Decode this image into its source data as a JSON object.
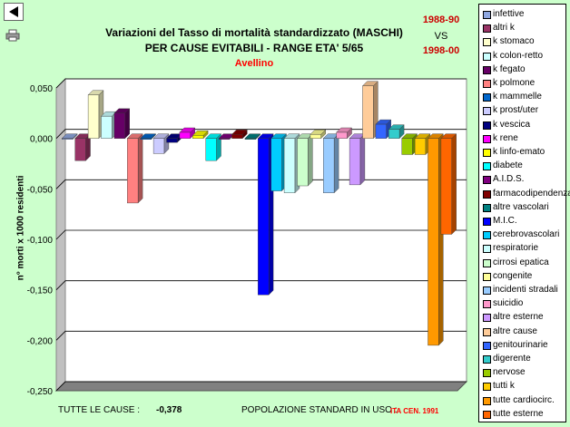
{
  "header": {
    "title_line1": "Variazioni del Tasso di mortalità standardizzato (MASCHI)",
    "title_line2": "PER CAUSE EVITABILI - RANGE ETA' 5/65",
    "area": "Avellino",
    "period1": "1988-90",
    "vs": "VS",
    "period2": "1998-00"
  },
  "footer": {
    "total_label": "TUTTE LE CAUSE :",
    "total_value": "-0,378",
    "pop_label": "POPOLAZIONE STANDARD IN USO :",
    "pop_value": "ITA CEN. 1991"
  },
  "toolbar": {
    "back_icon": "back-arrow-icon",
    "print_icon": "printer-icon"
  },
  "chart_data": {
    "type": "bar",
    "ylabel": "n° morti x 1000 residenti",
    "ylim": [
      -0.25,
      0.05
    ],
    "yticks": [
      "0,050",
      "0,000",
      "-0,050",
      "-0,100",
      "-0,150",
      "-0,200",
      "-0,250"
    ],
    "grid": true,
    "legend_position": "right",
    "series": [
      {
        "name": "infettive",
        "value": 0.0,
        "color": "#8fa7e0"
      },
      {
        "name": "altri k",
        "value": -0.022,
        "color": "#993366"
      },
      {
        "name": "k stomaco",
        "value": 0.043,
        "color": "#ffffcc"
      },
      {
        "name": "k colon-retto",
        "value": 0.022,
        "color": "#ccffff"
      },
      {
        "name": "k fegato",
        "value": 0.025,
        "color": "#660066"
      },
      {
        "name": "k polmone",
        "value": -0.064,
        "color": "#ff8080"
      },
      {
        "name": "k mammelle",
        "value": -0.001,
        "color": "#0066cc"
      },
      {
        "name": "k prost/uter",
        "value": -0.015,
        "color": "#ccccff"
      },
      {
        "name": "k vescica",
        "value": -0.004,
        "color": "#000080"
      },
      {
        "name": "k rene",
        "value": 0.006,
        "color": "#ff00ff"
      },
      {
        "name": "k linfo-emato",
        "value": 0.003,
        "color": "#ffff00"
      },
      {
        "name": "diabete",
        "value": -0.022,
        "color": "#00ffff"
      },
      {
        "name": "A.I.D.S.",
        "value": 0.0,
        "color": "#800080"
      },
      {
        "name": "farmacodipendenza",
        "value": 0.004,
        "color": "#800000"
      },
      {
        "name": "altre vascolari",
        "value": 0.0,
        "color": "#008080"
      },
      {
        "name": "M.I.C.",
        "value": -0.155,
        "color": "#0000ff"
      },
      {
        "name": "cerebrovascolari",
        "value": -0.052,
        "color": "#00ccff"
      },
      {
        "name": "respiratorie",
        "value": -0.054,
        "color": "#ccffff"
      },
      {
        "name": "cirrosi epatica",
        "value": -0.047,
        "color": "#ccffcc"
      },
      {
        "name": "congenite",
        "value": 0.004,
        "color": "#ffff99"
      },
      {
        "name": "incidenti stradali",
        "value": -0.054,
        "color": "#99ccff"
      },
      {
        "name": "suicidio",
        "value": 0.006,
        "color": "#ff99cc"
      },
      {
        "name": "altre esterne",
        "value": -0.046,
        "color": "#cc99ff"
      },
      {
        "name": "altre cause",
        "value": 0.052,
        "color": "#ffcc99"
      },
      {
        "name": "genitourinarie",
        "value": 0.014,
        "color": "#3366ff"
      },
      {
        "name": "digerente",
        "value": 0.009,
        "color": "#33cccc"
      },
      {
        "name": "nervose",
        "value": -0.016,
        "color": "#99cc00"
      },
      {
        "name": "tutti k",
        "value": -0.016,
        "color": "#ffcc00"
      },
      {
        "name": "tutte cardiocirc.",
        "value": -0.205,
        "color": "#ff9900"
      },
      {
        "name": "tutte esterne",
        "value": -0.095,
        "color": "#ff6600"
      }
    ]
  }
}
